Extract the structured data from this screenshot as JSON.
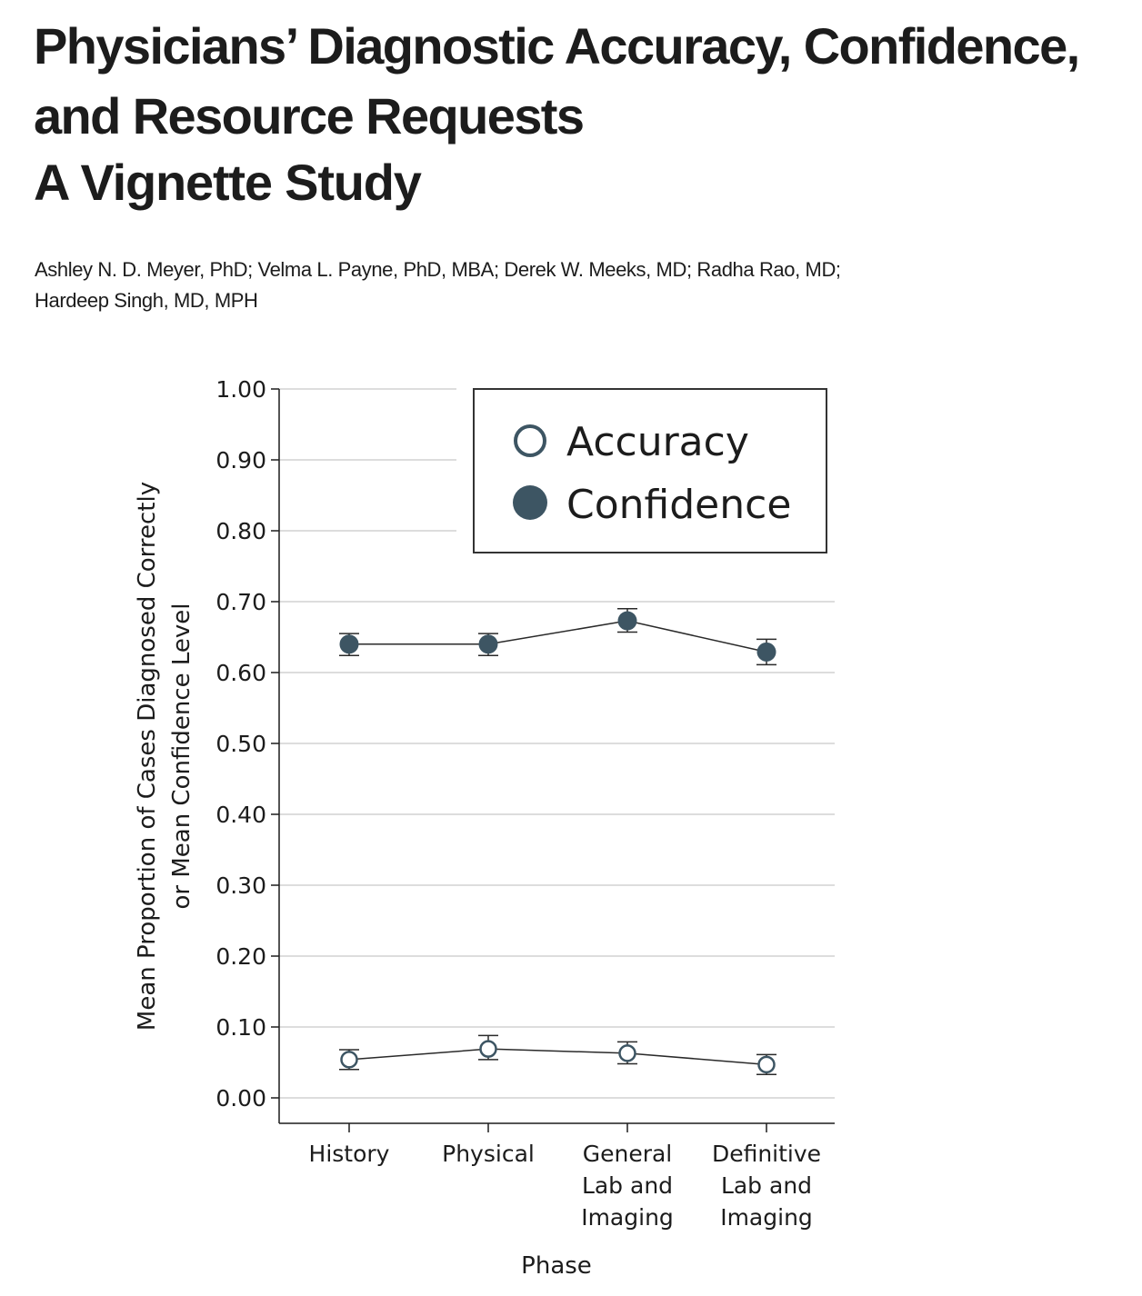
{
  "header": {
    "title_lines": [
      "Physicians’ Diagnostic Accuracy, Confidence,",
      "and Resource Requests"
    ],
    "subtitle": "A Vignette Study",
    "authors_lines": [
      "Ashley N. D. Meyer, PhD; Velma L. Payne, PhD, MBA; Derek W. Meeks, MD; Radha Rao, MD;",
      "Hardeep Singh, MD, MPH"
    ]
  },
  "chart_data": {
    "type": "line",
    "title": "",
    "xlabel": "Phase",
    "ylabel_lines": [
      "Mean Proportion of Cases Diagnosed Correctly",
      "or Mean Confidence Level"
    ],
    "categories": [
      [
        "History"
      ],
      [
        "Physical"
      ],
      [
        "General",
        "Lab and",
        "Imaging"
      ],
      [
        "Definitive",
        "Lab and",
        "Imaging"
      ]
    ],
    "ylim": [
      0,
      1
    ],
    "yticks": [
      "0.00",
      "0.10",
      "0.20",
      "0.30",
      "0.40",
      "0.50",
      "0.60",
      "0.70",
      "0.80",
      "0.90",
      "1.00"
    ],
    "grid": true,
    "legend_position": "top-right",
    "series": [
      {
        "name": "Accuracy",
        "marker": "open-circle",
        "color": "#3d5563",
        "values": [
          0.054,
          0.069,
          0.063,
          0.047
        ],
        "error_low": [
          0.04,
          0.054,
          0.048,
          0.033
        ],
        "error_high": [
          0.068,
          0.088,
          0.079,
          0.061
        ]
      },
      {
        "name": "Confidence",
        "marker": "filled-circle",
        "color": "#3d5563",
        "values": [
          0.64,
          0.64,
          0.673,
          0.629
        ],
        "error_low": [
          0.624,
          0.624,
          0.657,
          0.611
        ],
        "error_high": [
          0.655,
          0.655,
          0.69,
          0.647
        ]
      }
    ]
  }
}
